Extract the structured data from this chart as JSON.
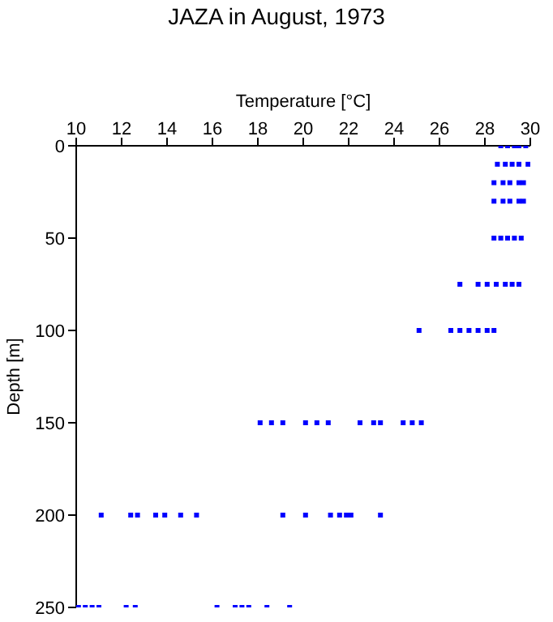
{
  "chart_data": {
    "type": "scatter",
    "title": "JAZA in August, 1973",
    "xlabel": "Temperature [°C]",
    "ylabel": "Depth [m]",
    "xlim": [
      10,
      30
    ],
    "xticks": [
      10,
      12,
      14,
      16,
      18,
      20,
      22,
      24,
      26,
      28,
      30
    ],
    "ylim": [
      250,
      0
    ],
    "yticks": [
      0,
      50,
      100,
      150,
      200,
      250
    ],
    "grid": false,
    "marker": "square",
    "series": [
      {
        "color": "#0000ff",
        "x": [
          28.7,
          29.0,
          29.3,
          29.5,
          29.8,
          28.55,
          28.9,
          29.2,
          29.5,
          29.9,
          28.4,
          28.8,
          29.1,
          29.5,
          29.7,
          28.4,
          28.8,
          29.1,
          29.5,
          29.7,
          28.4,
          28.7,
          29.0,
          29.3,
          29.6,
          26.9,
          27.7,
          28.1,
          28.5,
          28.9,
          29.2,
          29.5,
          25.1,
          26.5,
          26.9,
          27.3,
          27.7,
          28.1,
          28.4,
          18.1,
          18.6,
          19.1,
          20.1,
          20.6,
          21.1,
          22.5,
          23.1,
          23.4,
          24.4,
          24.8,
          25.2,
          11.1,
          12.4,
          12.7,
          13.5,
          13.9,
          14.6,
          15.3,
          19.1,
          20.1,
          21.2,
          21.6,
          21.9,
          22.1,
          23.4,
          10.1,
          10.4,
          10.7,
          11.0,
          12.2,
          12.6,
          16.2,
          17.0,
          17.3,
          17.6,
          18.4,
          19.4
        ],
        "values": [
          0,
          0,
          0,
          0,
          0,
          10,
          10,
          10,
          10,
          10,
          20,
          20,
          20,
          20,
          20,
          30,
          30,
          30,
          30,
          30,
          50,
          50,
          50,
          50,
          50,
          75,
          75,
          75,
          75,
          75,
          75,
          75,
          100,
          100,
          100,
          100,
          100,
          100,
          100,
          150,
          150,
          150,
          150,
          150,
          150,
          150,
          150,
          150,
          150,
          150,
          150,
          200,
          200,
          200,
          200,
          200,
          200,
          200,
          200,
          200,
          200,
          200,
          200,
          200,
          200,
          250,
          250,
          250,
          250,
          250,
          250,
          250,
          250,
          250,
          250,
          250,
          250
        ]
      }
    ]
  }
}
